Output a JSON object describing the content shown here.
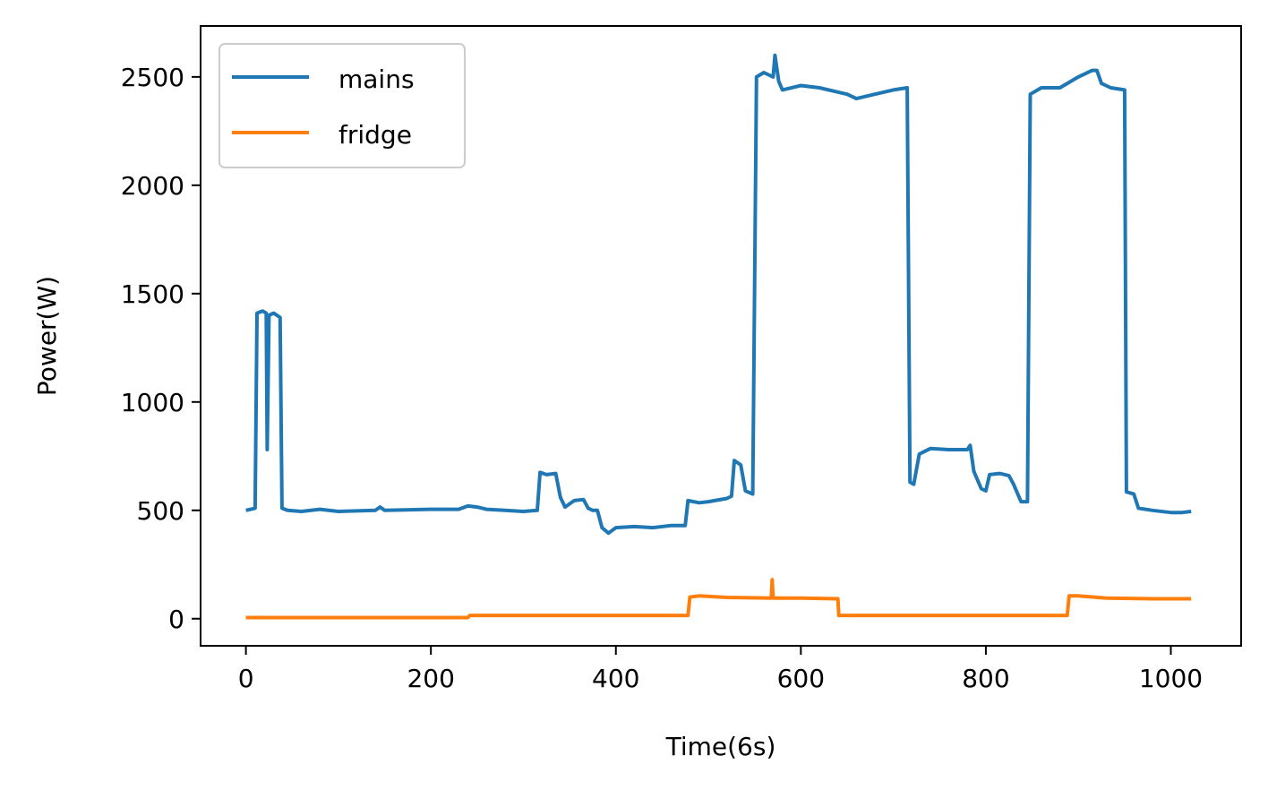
{
  "chart_data": {
    "type": "line",
    "title": "",
    "xlabel": "Time(6s)",
    "ylabel": "Power(W)",
    "xlim": [
      -49,
      1076
    ],
    "ylim": [
      -125,
      2735
    ],
    "x_ticks": [
      0,
      200,
      400,
      600,
      800,
      1000
    ],
    "y_ticks": [
      0,
      500,
      1000,
      1500,
      2000,
      2500
    ],
    "legend": {
      "position": "top-left"
    },
    "grid": false,
    "series": [
      {
        "name": "mains",
        "color": "#1f77b4",
        "points": [
          [
            0,
            500
          ],
          [
            10,
            510
          ],
          [
            12,
            1410
          ],
          [
            18,
            1420
          ],
          [
            22,
            1410
          ],
          [
            23,
            780
          ],
          [
            25,
            1400
          ],
          [
            30,
            1410
          ],
          [
            37,
            1390
          ],
          [
            39,
            510
          ],
          [
            45,
            500
          ],
          [
            60,
            495
          ],
          [
            80,
            505
          ],
          [
            100,
            495
          ],
          [
            140,
            500
          ],
          [
            145,
            515
          ],
          [
            150,
            500
          ],
          [
            200,
            505
          ],
          [
            230,
            505
          ],
          [
            240,
            520
          ],
          [
            250,
            515
          ],
          [
            260,
            505
          ],
          [
            280,
            500
          ],
          [
            300,
            495
          ],
          [
            315,
            500
          ],
          [
            318,
            675
          ],
          [
            325,
            665
          ],
          [
            335,
            670
          ],
          [
            340,
            560
          ],
          [
            345,
            515
          ],
          [
            350,
            530
          ],
          [
            355,
            545
          ],
          [
            365,
            550
          ],
          [
            370,
            510
          ],
          [
            375,
            500
          ],
          [
            380,
            500
          ],
          [
            385,
            420
          ],
          [
            392,
            395
          ],
          [
            400,
            420
          ],
          [
            420,
            425
          ],
          [
            440,
            420
          ],
          [
            460,
            430
          ],
          [
            475,
            430
          ],
          [
            478,
            545
          ],
          [
            490,
            535
          ],
          [
            500,
            540
          ],
          [
            520,
            555
          ],
          [
            525,
            565
          ],
          [
            528,
            730
          ],
          [
            535,
            710
          ],
          [
            540,
            590
          ],
          [
            548,
            575
          ],
          [
            552,
            2500
          ],
          [
            560,
            2520
          ],
          [
            570,
            2500
          ],
          [
            572,
            2600
          ],
          [
            576,
            2480
          ],
          [
            580,
            2440
          ],
          [
            600,
            2460
          ],
          [
            620,
            2450
          ],
          [
            640,
            2430
          ],
          [
            650,
            2420
          ],
          [
            660,
            2400
          ],
          [
            680,
            2420
          ],
          [
            700,
            2440
          ],
          [
            715,
            2450
          ],
          [
            718,
            630
          ],
          [
            722,
            620
          ],
          [
            728,
            760
          ],
          [
            740,
            785
          ],
          [
            760,
            780
          ],
          [
            780,
            780
          ],
          [
            783,
            800
          ],
          [
            787,
            680
          ],
          [
            795,
            600
          ],
          [
            800,
            590
          ],
          [
            804,
            665
          ],
          [
            815,
            670
          ],
          [
            825,
            660
          ],
          [
            830,
            620
          ],
          [
            838,
            540
          ],
          [
            845,
            540
          ],
          [
            848,
            2420
          ],
          [
            860,
            2450
          ],
          [
            880,
            2450
          ],
          [
            900,
            2500
          ],
          [
            915,
            2530
          ],
          [
            920,
            2530
          ],
          [
            925,
            2470
          ],
          [
            935,
            2450
          ],
          [
            950,
            2440
          ],
          [
            952,
            585
          ],
          [
            960,
            575
          ],
          [
            965,
            510
          ],
          [
            980,
            500
          ],
          [
            1000,
            490
          ],
          [
            1012,
            490
          ],
          [
            1022,
            495
          ]
        ]
      },
      {
        "name": "fridge",
        "color": "#ff7f0e",
        "points": [
          [
            0,
            5
          ],
          [
            240,
            5
          ],
          [
            242,
            15
          ],
          [
            478,
            15
          ],
          [
            480,
            100
          ],
          [
            490,
            105
          ],
          [
            520,
            98
          ],
          [
            568,
            95
          ],
          [
            569,
            180
          ],
          [
            570,
            95
          ],
          [
            600,
            95
          ],
          [
            640,
            92
          ],
          [
            641,
            15
          ],
          [
            888,
            15
          ],
          [
            890,
            105
          ],
          [
            900,
            105
          ],
          [
            930,
            95
          ],
          [
            980,
            92
          ],
          [
            1022,
            92
          ]
        ]
      }
    ]
  }
}
